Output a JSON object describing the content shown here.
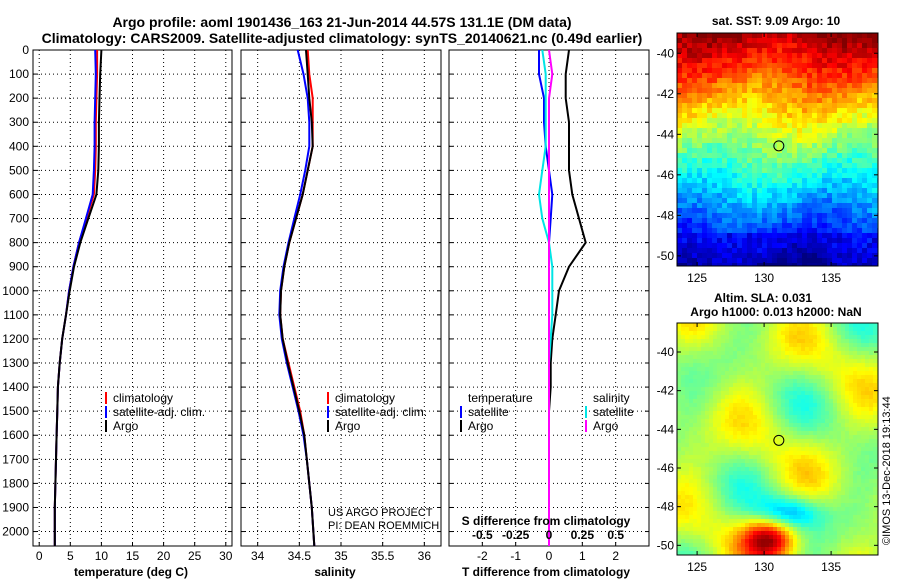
{
  "header": {
    "title_line1": "Argo profile: aoml 1901436_163 21-Jun-2014 44.57S 131.1E (DM data)",
    "title_line2": "Climatology: CARS2009. Satellite-adjusted climatology: synTS_20140621.nc (0.49d earlier)"
  },
  "colors": {
    "climatology": "#ff0000",
    "satellite": "#0000ff",
    "argo": "#000000",
    "sat_salinity": "#00e5e5",
    "argo_salinity": "#ff00ff"
  },
  "depth_ticks": [
    0,
    100,
    200,
    300,
    400,
    500,
    600,
    700,
    800,
    900,
    1000,
    1100,
    1200,
    1300,
    1400,
    1500,
    1600,
    1700,
    1800,
    1900,
    2000
  ],
  "chart_data": [
    {
      "type": "line",
      "xlabel": "temperature (deg C)",
      "xlim": [
        -1,
        31
      ],
      "ylim": [
        2060,
        0
      ],
      "xticks": [
        0,
        5,
        10,
        15,
        20,
        25,
        30
      ],
      "legend": {
        "position": "bottom-right",
        "labels": [
          "climatology",
          "satellite-adj. clim.",
          "Argo"
        ]
      },
      "series": [
        {
          "name": "climatology",
          "color": "#ff0000",
          "x": [
            9.3,
            9.3,
            9.2,
            9.1,
            9.1,
            9.0,
            8.8,
            7.6,
            6.4,
            5.5,
            4.8,
            4.3,
            3.7,
            3.3,
            3.0,
            2.9,
            2.8,
            2.7,
            2.6,
            2.5,
            2.5
          ],
          "y": [
            0,
            100,
            200,
            300,
            400,
            500,
            600,
            700,
            800,
            900,
            1000,
            1100,
            1200,
            1300,
            1400,
            1500,
            1600,
            1700,
            1800,
            1900,
            2060
          ]
        },
        {
          "name": "satellite-adj. clim.",
          "color": "#0000ff",
          "x": [
            9.0,
            9.1,
            9.0,
            8.9,
            8.9,
            8.8,
            8.6,
            7.5,
            6.4,
            5.5,
            4.8,
            4.3,
            3.7,
            3.3,
            3.0,
            2.9,
            2.8,
            2.7,
            2.6,
            2.5,
            2.5
          ],
          "y": [
            0,
            100,
            200,
            300,
            400,
            500,
            600,
            700,
            800,
            900,
            1000,
            1100,
            1200,
            1300,
            1400,
            1500,
            1600,
            1700,
            1800,
            1900,
            2060
          ]
        },
        {
          "name": "Argo",
          "color": "#000000",
          "x": [
            10.0,
            9.8,
            9.7,
            9.6,
            9.6,
            9.5,
            9.2,
            7.9,
            6.6,
            5.6,
            4.9,
            4.3,
            3.7,
            3.3,
            3.0,
            2.9,
            2.8,
            2.7,
            2.6,
            2.5,
            2.5
          ],
          "y": [
            0,
            100,
            200,
            300,
            400,
            500,
            600,
            700,
            800,
            900,
            1000,
            1100,
            1200,
            1300,
            1400,
            1500,
            1600,
            1700,
            1800,
            1900,
            2060
          ]
        }
      ]
    },
    {
      "type": "line",
      "xlabel": "salinity",
      "xlim": [
        33.8,
        36.2
      ],
      "ylim": [
        2060,
        0
      ],
      "xticks": [
        34,
        34.5,
        35,
        35.5,
        36
      ],
      "legend": {
        "position": "bottom-right",
        "labels": [
          "climatology",
          "satellite-adj. clim.",
          "Argo"
        ]
      },
      "series": [
        {
          "name": "climatology",
          "color": "#ff0000",
          "x": [
            34.6,
            34.62,
            34.66,
            34.66,
            34.66,
            34.6,
            34.54,
            34.46,
            34.38,
            34.32,
            34.28,
            34.27,
            34.3,
            34.37,
            34.44,
            34.51,
            34.56,
            34.59,
            34.62,
            34.65,
            34.68
          ],
          "y": [
            0,
            100,
            200,
            300,
            400,
            500,
            600,
            700,
            800,
            900,
            1000,
            1100,
            1200,
            1300,
            1400,
            1500,
            1600,
            1700,
            1800,
            1900,
            2060
          ]
        },
        {
          "name": "satellite-adj. clim.",
          "color": "#0000ff",
          "x": [
            34.48,
            34.55,
            34.6,
            34.62,
            34.62,
            34.57,
            34.51,
            34.44,
            34.37,
            34.31,
            34.27,
            34.26,
            34.29,
            34.35,
            34.42,
            34.49,
            34.55,
            34.59,
            34.62,
            34.65,
            34.68
          ],
          "y": [
            0,
            100,
            200,
            300,
            400,
            500,
            600,
            700,
            800,
            900,
            1000,
            1100,
            1200,
            1300,
            1400,
            1500,
            1600,
            1700,
            1800,
            1900,
            2060
          ]
        },
        {
          "name": "Argo",
          "color": "#000000",
          "x": [
            34.58,
            34.6,
            34.62,
            34.65,
            34.66,
            34.6,
            34.54,
            34.46,
            34.38,
            34.32,
            34.28,
            34.27,
            34.3,
            34.36,
            34.43,
            34.5,
            34.56,
            34.59,
            34.62,
            34.65,
            34.68
          ],
          "y": [
            0,
            100,
            200,
            300,
            400,
            500,
            600,
            700,
            800,
            900,
            1000,
            1100,
            1200,
            1300,
            1400,
            1500,
            1600,
            1700,
            1800,
            1900,
            2060
          ]
        }
      ]
    },
    {
      "type": "line",
      "xlabel": "T difference from climatology",
      "xlabel2": "S difference from climatology",
      "xlim": [
        -3,
        3
      ],
      "ylim": [
        2060,
        0
      ],
      "xticks": [
        -2,
        -1,
        0,
        1,
        2
      ],
      "xticks2_labels": [
        "-0.5",
        "-0.25",
        "0",
        "0.25",
        "0.5"
      ],
      "legend": {
        "position": "bottom",
        "labels": [
          "temperature",
          "satellite",
          "Argo",
          "salinity",
          "satellite",
          "Argo"
        ]
      },
      "series": [
        {
          "name": "satellite",
          "group": "temperature",
          "color": "#0000ff",
          "x": [
            -0.3,
            -0.3,
            -0.15,
            -0.15,
            -0.1,
            0.0,
            0.1,
            0.05,
            0.0,
            0.0,
            0.0,
            0.0,
            0.0,
            0.0,
            0.0,
            0.0,
            0.0,
            0.0,
            0.0,
            0.0,
            0.0
          ],
          "y": [
            0,
            100,
            200,
            300,
            400,
            500,
            600,
            700,
            800,
            900,
            1000,
            1100,
            1200,
            1300,
            1400,
            1500,
            1600,
            1700,
            1800,
            1900,
            2060
          ]
        },
        {
          "name": "Argo",
          "group": "temperature",
          "color": "#000000",
          "x": [
            0.6,
            0.5,
            0.5,
            0.6,
            0.6,
            0.6,
            0.7,
            0.9,
            1.1,
            0.6,
            0.3,
            0.2,
            0.1,
            0.05,
            0.05,
            0.0,
            0.0,
            0.0,
            0.0,
            0.0,
            0.0
          ],
          "y": [
            0,
            100,
            200,
            300,
            400,
            500,
            600,
            700,
            800,
            900,
            1000,
            1100,
            1200,
            1300,
            1400,
            1500,
            1600,
            1700,
            1800,
            1900,
            2060
          ]
        },
        {
          "name": "satellite",
          "group": "salinity",
          "color": "#00e5e5",
          "x": [
            -0.2,
            -0.1,
            -0.1,
            -0.1,
            -0.1,
            -0.2,
            -0.3,
            -0.2,
            0.0,
            0.1,
            0.1,
            0.1,
            0.05,
            0.0,
            0.0,
            0.0,
            0.0,
            0.0,
            0.0,
            0.0,
            0.0
          ],
          "y": [
            0,
            100,
            200,
            300,
            400,
            500,
            600,
            700,
            800,
            900,
            1000,
            1100,
            1200,
            1300,
            1400,
            1500,
            1600,
            1700,
            1800,
            1900,
            2060
          ]
        },
        {
          "name": "Argo",
          "group": "salinity",
          "color": "#ff00ff",
          "x": [
            0.0,
            0.1,
            0.0,
            0.0,
            0.0,
            0.0,
            0.0,
            0.0,
            0.0,
            0.0,
            0.0,
            0.0,
            0.0,
            0.0,
            0.0,
            0.0,
            0.0,
            0.0,
            0.0,
            0.0,
            0.0
          ],
          "y": [
            0,
            100,
            200,
            300,
            400,
            500,
            600,
            700,
            800,
            900,
            1000,
            1100,
            1200,
            1300,
            1400,
            1500,
            1600,
            1700,
            1800,
            1900,
            2060
          ]
        }
      ]
    },
    {
      "type": "heatmap",
      "title": "sat. SST: 9.09 Argo: 10",
      "xlim": [
        123.5,
        138.5
      ],
      "ylim": [
        -50.5,
        -39.0
      ],
      "xticks": [
        125,
        130,
        135
      ],
      "yticks": [
        -40,
        -42,
        -44,
        -46,
        -48,
        -50
      ],
      "marker": {
        "lon": 131.1,
        "lat": -44.57
      }
    },
    {
      "type": "heatmap",
      "title": "Altim. SLA: 0.031",
      "subtitle": "Argo h1000: 0.013 h2000: NaN",
      "xlim": [
        123.5,
        138.5
      ],
      "ylim": [
        -50.5,
        -38.5
      ],
      "xticks": [
        125,
        130,
        135
      ],
      "yticks": [
        -40,
        -42,
        -44,
        -46,
        -48,
        -50
      ],
      "marker": {
        "lon": 131.1,
        "lat": -44.57
      }
    }
  ],
  "panel1": {
    "leg1": "climatology",
    "leg2": "satellite-adj. clim.",
    "leg3": "Argo"
  },
  "panel2": {
    "leg1": "climatology",
    "leg2": "satellite-adj. clim.",
    "leg3": "Argo",
    "credit1": "US ARGO PROJECT",
    "credit2": "PI: DEAN ROEMMICH"
  },
  "panel3": {
    "leg_temp": "temperature",
    "leg_sal": "salinity",
    "leg_t_sat": "satellite",
    "leg_t_argo": "Argo",
    "leg_s_sat": "satellite",
    "leg_s_argo": "Argo"
  },
  "footer": {
    "stamp": "©IMOS 13-Dec-2018 19:13:44"
  }
}
